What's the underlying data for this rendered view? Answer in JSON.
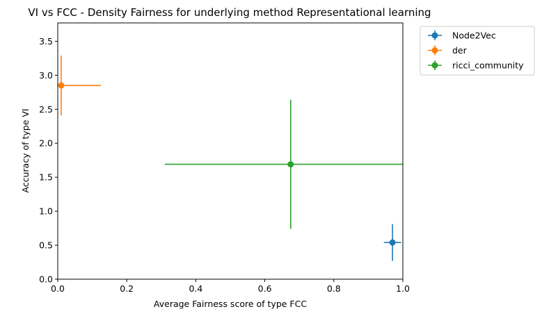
{
  "chart_data": {
    "type": "scatter",
    "title": "VI vs FCC - Density Fairness for underlying method Representational learning",
    "xlabel": "Average Fairness score of type FCC",
    "ylabel": "Accuracy of type VI",
    "xlim": [
      0.0,
      1.0
    ],
    "ylim": [
      0.0,
      3.77
    ],
    "xticks": [
      "0.0",
      "0.2",
      "0.4",
      "0.6",
      "0.8",
      "1.0"
    ],
    "yticks": [
      "0.0",
      "0.5",
      "1.0",
      "1.5",
      "2.0",
      "2.5",
      "3.0",
      "3.5"
    ],
    "grid": false,
    "legend_position": "outside-top-right",
    "series": [
      {
        "name": "Node2Vec",
        "color": "#1f77b4",
        "x": 0.97,
        "y": 0.54,
        "xerr": 0.025,
        "yerr": 0.27
      },
      {
        "name": "der",
        "color": "#ff7f0e",
        "x": 0.01,
        "y": 2.85,
        "xerr": 0.115,
        "yerr": 0.44
      },
      {
        "name": "ricci_community",
        "color": "#2ca02c",
        "x": 0.675,
        "y": 1.69,
        "xerr": 0.365,
        "yerr": 0.95
      }
    ]
  }
}
